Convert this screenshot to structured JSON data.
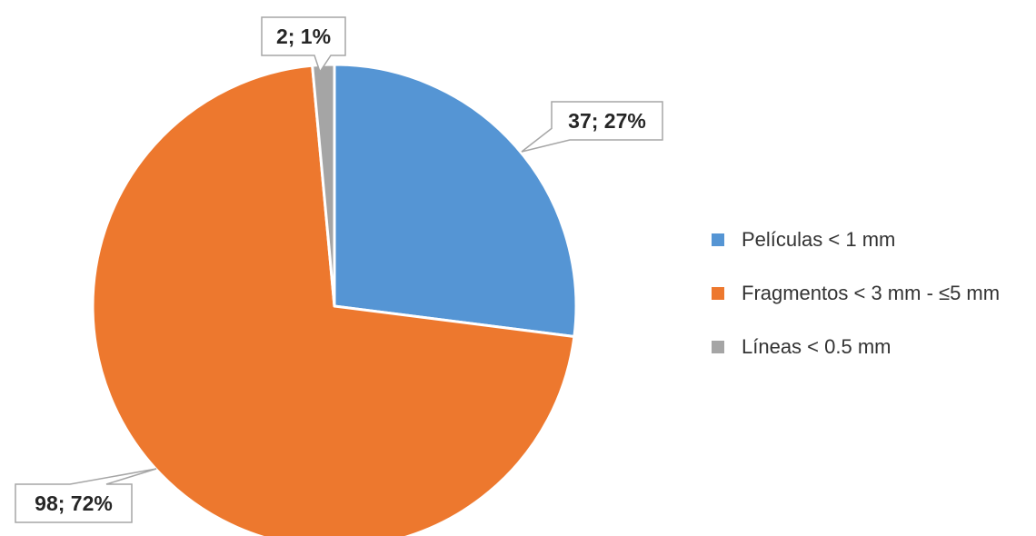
{
  "chart_data": {
    "type": "pie",
    "categories": [
      "Películas < 1 mm",
      "Fragmentos < 3 mm - ≤5 mm",
      "Líneas < 0.5 mm"
    ],
    "values": [
      37,
      98,
      2
    ],
    "data_labels": [
      "37; 27%",
      "98; 72%",
      "2; 1%"
    ],
    "colors": [
      "#5595D4",
      "#ED782E",
      "#A5A5A5"
    ],
    "title": "",
    "legend_position": "right",
    "start_direction": "12 o'clock",
    "slice_direction": "clockwise"
  }
}
